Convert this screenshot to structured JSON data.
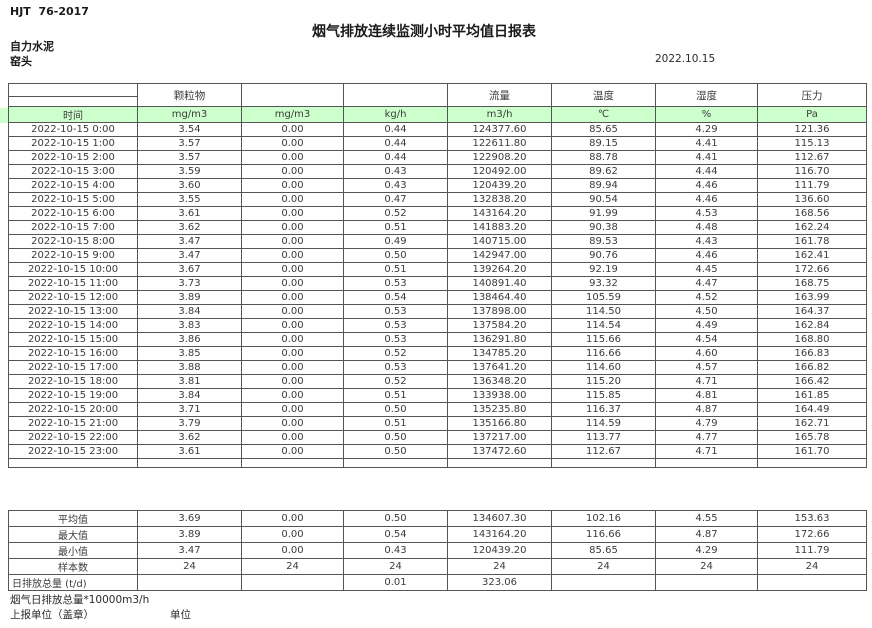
{
  "header": {
    "standard": "HJT  76-2017",
    "title": "烟气排放连续监测小时平均值日报表",
    "company": "自力水泥",
    "location": "窑头",
    "date": "2022.10.15"
  },
  "table": {
    "group_headers": [
      "",
      "颗粒物",
      "",
      "",
      "流量",
      "温度",
      "湿度",
      "压力"
    ],
    "unit_row": [
      "时间",
      "mg/m3",
      "mg/m3",
      "kg/h",
      "m3/h",
      "℃",
      "%",
      "Pa"
    ],
    "rows": [
      [
        "2022-10-15 0:00",
        "3.54",
        "0.00",
        "0.44",
        "124377.60",
        "85.65",
        "4.29",
        "121.36"
      ],
      [
        "2022-10-15 1:00",
        "3.57",
        "0.00",
        "0.44",
        "122611.80",
        "89.15",
        "4.41",
        "115.13"
      ],
      [
        "2022-10-15 2:00",
        "3.57",
        "0.00",
        "0.44",
        "122908.20",
        "88.78",
        "4.41",
        "112.67"
      ],
      [
        "2022-10-15 3:00",
        "3.59",
        "0.00",
        "0.43",
        "120492.00",
        "89.62",
        "4.44",
        "116.70"
      ],
      [
        "2022-10-15 4:00",
        "3.60",
        "0.00",
        "0.43",
        "120439.20",
        "89.94",
        "4.46",
        "111.79"
      ],
      [
        "2022-10-15 5:00",
        "3.55",
        "0.00",
        "0.47",
        "132838.20",
        "90.54",
        "4.46",
        "136.60"
      ],
      [
        "2022-10-15 6:00",
        "3.61",
        "0.00",
        "0.52",
        "143164.20",
        "91.99",
        "4.53",
        "168.56"
      ],
      [
        "2022-10-15 7:00",
        "3.62",
        "0.00",
        "0.51",
        "141883.20",
        "90.38",
        "4.48",
        "162.24"
      ],
      [
        "2022-10-15 8:00",
        "3.47",
        "0.00",
        "0.49",
        "140715.00",
        "89.53",
        "4.43",
        "161.78"
      ],
      [
        "2022-10-15 9:00",
        "3.47",
        "0.00",
        "0.50",
        "142947.00",
        "90.76",
        "4.46",
        "162.41"
      ],
      [
        "2022-10-15 10:00",
        "3.67",
        "0.00",
        "0.51",
        "139264.20",
        "92.19",
        "4.45",
        "172.66"
      ],
      [
        "2022-10-15 11:00",
        "3.73",
        "0.00",
        "0.53",
        "140891.40",
        "93.32",
        "4.47",
        "168.75"
      ],
      [
        "2022-10-15 12:00",
        "3.89",
        "0.00",
        "0.54",
        "138464.40",
        "105.59",
        "4.52",
        "163.99"
      ],
      [
        "2022-10-15 13:00",
        "3.84",
        "0.00",
        "0.53",
        "137898.00",
        "114.50",
        "4.50",
        "164.37"
      ],
      [
        "2022-10-15 14:00",
        "3.83",
        "0.00",
        "0.53",
        "137584.20",
        "114.54",
        "4.49",
        "162.84"
      ],
      [
        "2022-10-15 15:00",
        "3.86",
        "0.00",
        "0.53",
        "136291.80",
        "115.66",
        "4.54",
        "168.80"
      ],
      [
        "2022-10-15 16:00",
        "3.85",
        "0.00",
        "0.52",
        "134785.20",
        "116.66",
        "4.60",
        "166.83"
      ],
      [
        "2022-10-15 17:00",
        "3.88",
        "0.00",
        "0.53",
        "137641.20",
        "114.60",
        "4.57",
        "166.82"
      ],
      [
        "2022-10-15 18:00",
        "3.81",
        "0.00",
        "0.52",
        "136348.20",
        "115.20",
        "4.71",
        "166.42"
      ],
      [
        "2022-10-15 19:00",
        "3.84",
        "0.00",
        "0.51",
        "133938.00",
        "115.85",
        "4.81",
        "161.85"
      ],
      [
        "2022-10-15 20:00",
        "3.71",
        "0.00",
        "0.50",
        "135235.80",
        "116.37",
        "4.87",
        "164.49"
      ],
      [
        "2022-10-15 21:00",
        "3.79",
        "0.00",
        "0.51",
        "135166.80",
        "114.59",
        "4.79",
        "162.71"
      ],
      [
        "2022-10-15 22:00",
        "3.62",
        "0.00",
        "0.50",
        "137217.00",
        "113.77",
        "4.77",
        "165.78"
      ],
      [
        "2022-10-15 23:00",
        "3.61",
        "0.00",
        "0.50",
        "137472.60",
        "112.67",
        "4.71",
        "161.70"
      ]
    ],
    "summary_rows": [
      [
        "平均值",
        "3.69",
        "0.00",
        "0.50",
        "134607.30",
        "102.16",
        "4.55",
        "153.63"
      ],
      [
        "最大值",
        "3.89",
        "0.00",
        "0.54",
        "143164.20",
        "116.66",
        "4.87",
        "172.66"
      ],
      [
        "最小值",
        "3.47",
        "0.00",
        "0.43",
        "120439.20",
        "85.65",
        "4.29",
        "111.79"
      ],
      [
        "样本数",
        "24",
        "24",
        "24",
        "24",
        "24",
        "24",
        "24"
      ],
      [
        "日排放总量 (t/d)",
        "",
        "",
        "0.01",
        "323.06",
        "",
        "",
        ""
      ]
    ]
  },
  "footer": {
    "note": "烟气日排放总量*10000m3/h",
    "report_unit": "上报单位（盖章）",
    "unit_label": "单位"
  },
  "colors": {
    "header_green": "#ccffcc",
    "border": "#555555"
  }
}
